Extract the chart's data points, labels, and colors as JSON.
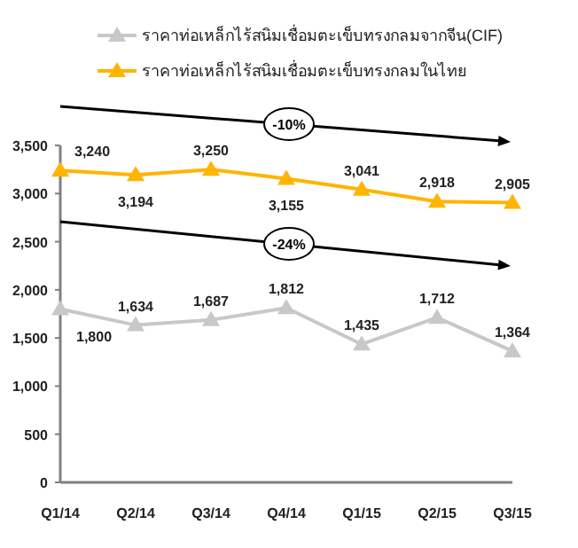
{
  "chart_data": {
    "type": "line",
    "categories": [
      "Q1/14",
      "Q2/14",
      "Q3/14",
      "Q4/14",
      "Q1/15",
      "Q2/15",
      "Q3/15"
    ],
    "series": [
      {
        "name": "ราคาท่อเหล็กไร้สนิมเชื่อมตะเข็บทรงกลมจากจีน(CIF)",
        "color": "#c8c8c8",
        "values": [
          1800,
          1634,
          1687,
          1812,
          1435,
          1712,
          1364
        ],
        "value_labels": [
          "1,800",
          "1,634",
          "1,687",
          "1,812",
          "1,435",
          "1,712",
          "1,364"
        ]
      },
      {
        "name": "ราคาท่อเหล็กไร้สนิมเชื่อมตะเข็บทรงกลมในไทย",
        "color": "#ffb400",
        "values": [
          3240,
          3194,
          3250,
          3155,
          3041,
          2918,
          2905
        ],
        "value_labels": [
          "3,240",
          "3,194",
          "3,250",
          "3,155",
          "3,041",
          "2,918",
          "2,905"
        ]
      }
    ],
    "ylim": [
      0,
      3500
    ],
    "yticks": [
      0,
      500,
      {
        "value": 1000,
        "label": "1,000"
      },
      {
        "value": 1500,
        "label": "1,500"
      },
      {
        "value": 2000,
        "label": "2,000"
      },
      {
        "value": 2500,
        "label": "2,500"
      },
      {
        "value": 3000,
        "label": "3,000"
      },
      {
        "value": 3500,
        "label": "3,500"
      }
    ],
    "legend": "top",
    "marker": "triangle",
    "line_style": "solid",
    "grid": false,
    "annotations": [
      "-10%",
      "-24%"
    ]
  }
}
